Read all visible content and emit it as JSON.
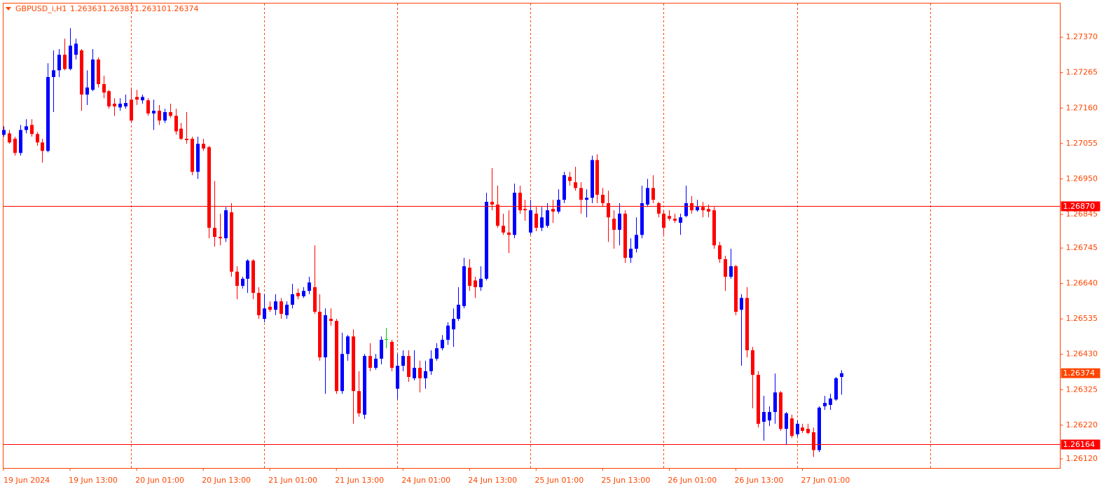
{
  "chart_data": {
    "type": "candlestick",
    "symbol": "GBPUSD_i,H1",
    "header_prices": [
      "1.26363",
      "1.26383",
      "1.26310",
      "1.26374"
    ],
    "bull_color": "#0000ff",
    "bear_color": "#ff0000",
    "doji_color": "#00c800",
    "axis_color": "#ff4500",
    "hline_color": "#ff0000",
    "ylim": [
      1.26093,
      1.2747
    ],
    "yticks": [
      {
        "value": 1.2737,
        "label": "1.27370"
      },
      1.27265,
      {
        "value": 1.2716,
        "label": "1.27160"
      },
      1.27055,
      {
        "value": 1.2695,
        "label": "1.26950"
      },
      1.26845,
      1.26745,
      {
        "value": 1.2664,
        "label": "1.26640"
      },
      1.26535,
      {
        "value": 1.2643,
        "label": "1.26430"
      },
      1.26325,
      {
        "value": 1.2622,
        "label": "1.26220"
      },
      {
        "value": 1.2612,
        "label": "1.26120"
      }
    ],
    "hlines": [
      {
        "value": 1.2687,
        "label": "1.26870"
      },
      1.26164
    ],
    "last_price": 1.26374,
    "categories": [
      "19 Jun 2024",
      null,
      null,
      null,
      null,
      null,
      null,
      null,
      null,
      null,
      null,
      null,
      "19 Jun 13:00",
      null,
      null,
      null,
      null,
      null,
      null,
      null,
      null,
      null,
      null,
      null,
      "20 Jun 01:00",
      null,
      null,
      null,
      null,
      null,
      null,
      null,
      null,
      null,
      null,
      null,
      "20 Jun 13:00",
      null,
      null,
      null,
      null,
      null,
      null,
      null,
      null,
      null,
      null,
      null,
      "21 Jun 01:00",
      null,
      null,
      null,
      null,
      null,
      null,
      null,
      null,
      null,
      null,
      null,
      "21 Jun 13:00",
      null,
      null,
      null,
      null,
      null,
      null,
      null,
      null,
      null,
      null,
      null,
      "24 Jun 01:00",
      null,
      null,
      null,
      null,
      null,
      null,
      null,
      null,
      null,
      null,
      null,
      "24 Jun 13:00",
      null,
      null,
      null,
      null,
      null,
      null,
      null,
      null,
      null,
      null,
      null,
      "25 Jun 01:00",
      null,
      null,
      null,
      null,
      null,
      null,
      null,
      null,
      null,
      null,
      null,
      "25 Jun 13:00",
      null,
      null,
      null,
      null,
      null,
      null,
      null,
      null,
      null,
      null,
      null,
      "26 Jun 01:00",
      null,
      null,
      null,
      null,
      null,
      null,
      null,
      null,
      null,
      null,
      null,
      "26 Jun 13:00",
      null,
      null,
      null,
      null,
      null,
      null,
      null,
      null,
      null,
      null,
      null,
      "27 Jun 01:00",
      null,
      null,
      null,
      null,
      null,
      null,
      null
    ],
    "candles": [
      [
        1.27081,
        1.27106,
        1.27075,
        1.27095
      ],
      [
        1.27085,
        1.27095,
        1.27054,
        1.27058
      ],
      [
        1.27069,
        1.27075,
        1.27019,
        1.27027
      ],
      [
        1.27027,
        1.2711,
        1.27019,
        1.27095
      ],
      [
        1.27095,
        1.27127,
        1.27085,
        1.27106
      ],
      [
        1.2711,
        1.27127,
        1.27075,
        1.27083
      ],
      [
        1.27083,
        1.27089,
        1.27048,
        1.27058
      ],
      [
        1.27058,
        1.27069,
        1.26998,
        1.27033
      ],
      [
        1.27033,
        1.27293,
        1.27029,
        1.27252
      ],
      [
        1.27252,
        1.27331,
        1.27148,
        1.27272
      ],
      [
        1.27272,
        1.27335,
        1.27252,
        1.27318
      ],
      [
        1.27318,
        1.27366,
        1.27272,
        1.27276
      ],
      [
        1.27276,
        1.27397,
        1.27272,
        1.27345
      ],
      [
        1.27318,
        1.27366,
        1.27304,
        1.27351
      ],
      [
        1.27331,
        1.27335,
        1.27152,
        1.272
      ],
      [
        1.272,
        1.27272,
        1.27169,
        1.27221
      ],
      [
        1.27214,
        1.27335,
        1.2721,
        1.27304
      ],
      [
        1.27304,
        1.2731,
        1.27221,
        1.27231
      ],
      [
        1.27231,
        1.27256,
        1.27189,
        1.27206
      ],
      [
        1.2721,
        1.27214,
        1.27158,
        1.27165
      ],
      [
        1.27173,
        1.27189,
        1.27137,
        1.27165
      ],
      [
        1.27162,
        1.27189,
        1.27152,
        1.27173
      ],
      [
        1.27165,
        1.272,
        1.27158,
        1.27175
      ],
      [
        1.27185,
        1.27221,
        1.27116,
        1.27123
      ],
      [
        1.27193,
        1.27214,
        1.27169,
        1.27185
      ],
      [
        1.27183,
        1.272,
        1.27173,
        1.27193
      ],
      [
        1.27183,
        1.27189,
        1.27137,
        1.27144
      ],
      [
        1.27144,
        1.27185,
        1.27095,
        1.27152
      ],
      [
        1.27152,
        1.27169,
        1.2711,
        1.27123
      ],
      [
        1.27123,
        1.27158,
        1.27116,
        1.27148
      ],
      [
        1.27148,
        1.27173,
        1.27131,
        1.27137
      ],
      [
        1.27137,
        1.27158,
        1.27081,
        1.27091
      ],
      [
        1.27099,
        1.27116,
        1.27065,
        1.27069
      ],
      [
        1.27069,
        1.27148,
        1.27054,
        1.27065
      ],
      [
        1.27069,
        1.27075,
        1.26961,
        1.26971
      ],
      [
        1.26971,
        1.27075,
        1.2695,
        1.27054
      ],
      [
        1.27054,
        1.27069,
        1.27033,
        1.2704
      ],
      [
        1.27044,
        1.27048,
        1.26774,
        1.26805
      ],
      [
        1.26805,
        1.26944,
        1.26749,
        1.26778
      ],
      [
        1.26778,
        1.26847,
        1.26753,
        1.26774
      ],
      [
        1.26774,
        1.26867,
        1.26763,
        1.26857
      ],
      [
        1.26851,
        1.26878,
        1.2666,
        1.26675
      ],
      [
        1.26675,
        1.26691,
        1.26593,
        1.26633
      ],
      [
        1.26633,
        1.2666,
        1.26625,
        1.26654
      ],
      [
        1.26654,
        1.26712,
        1.26612,
        1.26708
      ],
      [
        1.26708,
        1.26712,
        1.26593,
        1.26612
      ],
      [
        1.26612,
        1.26629,
        1.26535,
        1.26546
      ],
      [
        1.26535,
        1.26608,
        1.26525,
        1.26566
      ],
      [
        1.26571,
        1.26587,
        1.26556,
        1.26562
      ],
      [
        1.26562,
        1.26608,
        1.26546,
        1.26587
      ],
      [
        1.26587,
        1.26597,
        1.26535,
        1.2655
      ],
      [
        1.26546,
        1.26587,
        1.26535,
        1.26577
      ],
      [
        1.26577,
        1.26639,
        1.26566,
        1.26608
      ],
      [
        1.26612,
        1.26625,
        1.26593,
        1.26602
      ],
      [
        1.26602,
        1.26629,
        1.26597,
        1.26618
      ],
      [
        1.26618,
        1.2666,
        1.26608,
        1.26643
      ],
      [
        1.26629,
        1.26753,
        1.2655,
        1.26556
      ],
      [
        1.26556,
        1.26608,
        1.26411,
        1.26421
      ],
      [
        1.26421,
        1.26566,
        1.26313,
        1.26546
      ],
      [
        1.26535,
        1.26566,
        1.26515,
        1.26529
      ],
      [
        1.26529,
        1.26535,
        1.26313,
        1.26321
      ],
      [
        1.26321,
        1.26494,
        1.26313,
        1.26431
      ],
      [
        1.26431,
        1.26487,
        1.26411,
        1.26483
      ],
      [
        1.26483,
        1.26504,
        1.26224,
        1.26321
      ],
      [
        1.26321,
        1.2638,
        1.26245,
        1.26255
      ],
      [
        1.26251,
        1.26431,
        1.26238,
        1.26425
      ],
      [
        1.26425,
        1.26463,
        1.2638,
        1.2639
      ],
      [
        1.2639,
        1.26431,
        1.26384,
        1.26417
      ],
      [
        1.26417,
        1.26483,
        1.264,
        1.26473
      ],
      [
        1.26475,
        1.26508,
        1.26448,
        1.26475
      ],
      [
        1.26467,
        1.26473,
        1.2638,
        1.2639
      ],
      [
        1.26328,
        1.26431,
        1.26296,
        1.26396
      ],
      [
        1.26396,
        1.26442,
        1.2638,
        1.26425
      ],
      [
        1.26425,
        1.26442,
        1.26348,
        1.26363
      ],
      [
        1.26359,
        1.26442,
        1.26353,
        1.2639
      ],
      [
        1.2639,
        1.26411,
        1.26317,
        1.26359
      ],
      [
        1.26359,
        1.26411,
        1.26328,
        1.2638
      ],
      [
        1.2638,
        1.26442,
        1.26369,
        1.26417
      ],
      [
        1.26417,
        1.26463,
        1.26411,
        1.26448
      ],
      [
        1.26448,
        1.26487,
        1.26442,
        1.26473
      ],
      [
        1.26473,
        1.26525,
        1.26458,
        1.26515
      ],
      [
        1.26504,
        1.26566,
        1.26452,
        1.26535
      ],
      [
        1.26535,
        1.26629,
        1.26529,
        1.26577
      ],
      [
        1.26573,
        1.26716,
        1.26566,
        1.26691
      ],
      [
        1.26687,
        1.26712,
        1.26618,
        1.26633
      ],
      [
        1.26649,
        1.2666,
        1.26597,
        1.26629
      ],
      [
        1.26629,
        1.26691,
        1.26618,
        1.26654
      ],
      [
        1.26654,
        1.26909,
        1.26649,
        1.26882
      ],
      [
        1.26882,
        1.26982,
        1.26857,
        1.26874
      ],
      [
        1.26874,
        1.2693,
        1.26805,
        1.26811
      ],
      [
        1.26811,
        1.26847,
        1.26784,
        1.26791
      ],
      [
        1.26791,
        1.26857,
        1.2673,
        1.26784
      ],
      [
        1.26784,
        1.26936,
        1.26774,
        1.26909
      ],
      [
        1.26909,
        1.2693,
        1.26847,
        1.26857
      ],
      [
        1.26861,
        1.26888,
        1.26826,
        1.26857
      ],
      [
        1.26791,
        1.26888,
        1.26784,
        1.26857
      ],
      [
        1.26847,
        1.26867,
        1.26795,
        1.26805
      ],
      [
        1.26805,
        1.26867,
        1.26795,
        1.26836
      ],
      [
        1.26811,
        1.26878,
        1.26805,
        1.26857
      ],
      [
        1.26861,
        1.26888,
        1.2682,
        1.26853
      ],
      [
        1.26853,
        1.26919,
        1.26847,
        1.26888
      ],
      [
        1.26888,
        1.26971,
        1.26878,
        1.26961
      ],
      [
        1.26956,
        1.26971,
        1.2693,
        1.26944
      ],
      [
        1.2694,
        1.26986,
        1.26915,
        1.26923
      ],
      [
        1.26923,
        1.2694,
        1.26847,
        1.26888
      ],
      [
        1.26888,
        1.26919,
        1.26836,
        1.26894
      ],
      [
        1.26894,
        1.27019,
        1.26878,
        1.27006
      ],
      [
        1.27006,
        1.27023,
        1.26878,
        1.26903
      ],
      [
        1.26903,
        1.26923,
        1.26867,
        1.26878
      ],
      [
        1.26878,
        1.26915,
        1.26763,
        1.26836
      ],
      [
        1.26832,
        1.26857,
        1.26743,
        1.26799
      ],
      [
        1.26799,
        1.26878,
        1.26753,
        1.26847
      ],
      [
        1.26847,
        1.26857,
        1.26701,
        1.26716
      ],
      [
        1.26716,
        1.26774,
        1.26701,
        1.26743
      ],
      [
        1.26743,
        1.26836,
        1.26732,
        1.26784
      ],
      [
        1.26784,
        1.2693,
        1.26774,
        1.26878
      ],
      [
        1.26874,
        1.2695,
        1.26867,
        1.26923
      ],
      [
        1.26923,
        1.26961,
        1.26878,
        1.26888
      ],
      [
        1.26878,
        1.26882,
        1.26836,
        1.26847
      ],
      [
        1.26847,
        1.26857,
        1.26784,
        1.26805
      ],
      [
        1.2684,
        1.26857,
        1.26826,
        1.26832
      ],
      [
        1.26832,
        1.26847,
        1.2682,
        1.26826
      ],
      [
        1.2682,
        1.26847,
        1.26784,
        1.26836
      ],
      [
        1.2684,
        1.2693,
        1.26836,
        1.26878
      ],
      [
        1.26878,
        1.26899,
        1.26847,
        1.26857
      ],
      [
        1.26857,
        1.26888,
        1.26853,
        1.26867
      ],
      [
        1.26867,
        1.26882,
        1.26836,
        1.26857
      ],
      [
        1.26861,
        1.26874,
        1.26836,
        1.26853
      ],
      [
        1.26857,
        1.26867,
        1.26743,
        1.26753
      ],
      [
        1.26753,
        1.26763,
        1.26701,
        1.26712
      ],
      [
        1.26712,
        1.26722,
        1.26618,
        1.2666
      ],
      [
        1.2666,
        1.26743,
        1.26654,
        1.26691
      ],
      [
        1.26691,
        1.26695,
        1.26546,
        1.26556
      ],
      [
        1.26562,
        1.26608,
        1.26396,
        1.26597
      ],
      [
        1.26597,
        1.26629,
        1.26421,
        1.26442
      ],
      [
        1.26442,
        1.26452,
        1.2627,
        1.26369
      ],
      [
        1.26369,
        1.2638,
        1.26213,
        1.26224
      ],
      [
        1.2623,
        1.26307,
        1.26174,
        1.26259
      ],
      [
        1.26234,
        1.26276,
        1.26217,
        1.26259
      ],
      [
        1.26259,
        1.26373,
        1.26224,
        1.26317
      ],
      [
        1.26317,
        1.26321,
        1.26203,
        1.26209
      ],
      [
        1.26209,
        1.26259,
        1.26161,
        1.26255
      ],
      [
        1.2624,
        1.26251,
        1.26182,
        1.26188
      ],
      [
        1.26193,
        1.26234,
        1.26186,
        1.26224
      ],
      [
        1.26213,
        1.26224,
        1.26197,
        1.26203
      ],
      [
        1.26209,
        1.26224,
        1.26193,
        1.26197
      ],
      [
        1.26199,
        1.26213,
        1.26126,
        1.26146
      ],
      [
        1.26146,
        1.26276,
        1.2614,
        1.26272
      ],
      [
        1.26276,
        1.26307,
        1.26265,
        1.26286
      ],
      [
        1.2628,
        1.26313,
        1.26265,
        1.26299
      ],
      [
        1.26296,
        1.26363,
        1.26292,
        1.26359
      ],
      [
        1.26363,
        1.26383,
        1.2631,
        1.26374
      ]
    ]
  }
}
